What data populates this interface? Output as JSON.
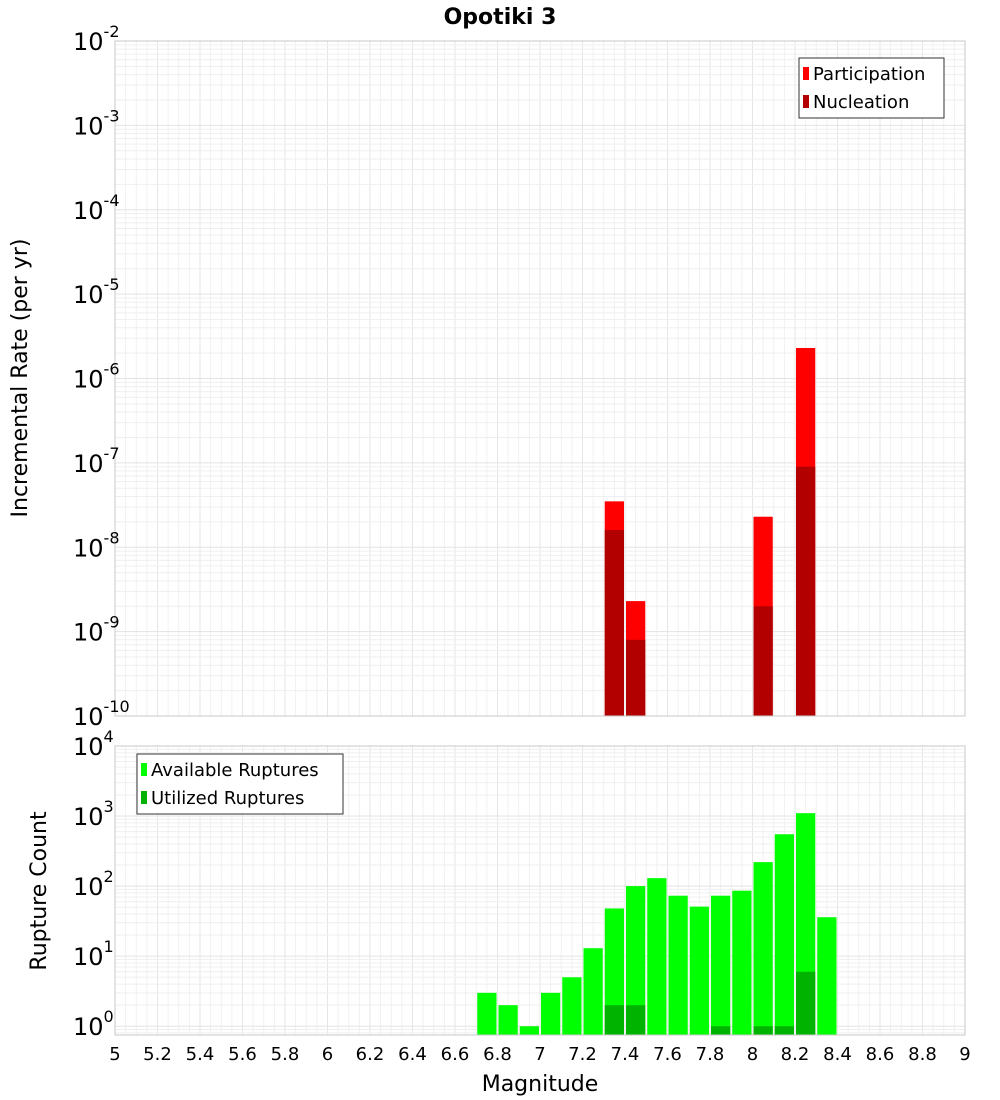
{
  "chart_data": [
    {
      "type": "bar",
      "title": "Opotiki 3",
      "xlabel": "",
      "ylabel": "Incremental Rate (per yr)",
      "yscale": "log",
      "xlim": [
        5,
        9
      ],
      "ylim": [
        1e-10,
        0.01
      ],
      "y_tick_exponents": [
        -10,
        -9,
        -8,
        -7,
        -6,
        -5,
        -4,
        -3,
        -2
      ],
      "y_tick_base": "10",
      "grid": true,
      "legend_position": "top-right",
      "series": [
        {
          "name": "Participation",
          "color": "#ff0000",
          "points": [
            {
              "x": 7.35,
              "y": 3.5e-08
            },
            {
              "x": 7.45,
              "y": 2.3e-09
            },
            {
              "x": 8.05,
              "y": 2.3e-08
            },
            {
              "x": 8.25,
              "y": 2.3e-06
            }
          ]
        },
        {
          "name": "Nucleation",
          "color": "#b20000",
          "points": [
            {
              "x": 7.35,
              "y": 1.6e-08
            },
            {
              "x": 7.45,
              "y": 8e-10
            },
            {
              "x": 8.05,
              "y": 2e-09
            },
            {
              "x": 8.25,
              "y": 9e-08
            }
          ]
        }
      ]
    },
    {
      "type": "bar",
      "title": "",
      "xlabel": "Magnitude",
      "ylabel": "Rupture Count",
      "yscale": "log",
      "xlim": [
        5,
        9
      ],
      "ylim": [
        0.75,
        10000
      ],
      "y_tick_exponents": [
        0,
        1,
        2,
        3,
        4
      ],
      "y_tick_base": "10",
      "x_ticks": [
        "5",
        "5.2",
        "5.4",
        "5.6",
        "5.8",
        "6",
        "6.2",
        "6.4",
        "6.6",
        "6.8",
        "7",
        "7.2",
        "7.4",
        "7.6",
        "7.8",
        "8",
        "8.2",
        "8.4",
        "8.6",
        "8.8",
        "9"
      ],
      "grid": true,
      "legend_position": "top-left",
      "series": [
        {
          "name": "Available Ruptures",
          "color": "#00ff00",
          "points": [
            {
              "x": 6.75,
              "y": 3
            },
            {
              "x": 6.85,
              "y": 2
            },
            {
              "x": 6.95,
              "y": 1
            },
            {
              "x": 7.05,
              "y": 3
            },
            {
              "x": 7.15,
              "y": 5
            },
            {
              "x": 7.25,
              "y": 13
            },
            {
              "x": 7.35,
              "y": 48
            },
            {
              "x": 7.45,
              "y": 100
            },
            {
              "x": 7.55,
              "y": 130
            },
            {
              "x": 7.65,
              "y": 73
            },
            {
              "x": 7.75,
              "y": 51
            },
            {
              "x": 7.85,
              "y": 73
            },
            {
              "x": 7.95,
              "y": 86
            },
            {
              "x": 8.05,
              "y": 220
            },
            {
              "x": 8.15,
              "y": 550
            },
            {
              "x": 8.25,
              "y": 1100
            },
            {
              "x": 8.35,
              "y": 36
            }
          ]
        },
        {
          "name": "Utilized Ruptures",
          "color": "#00b300",
          "points": [
            {
              "x": 7.35,
              "y": 2
            },
            {
              "x": 7.45,
              "y": 2
            },
            {
              "x": 7.85,
              "y": 1
            },
            {
              "x": 8.05,
              "y": 1
            },
            {
              "x": 8.15,
              "y": 1
            },
            {
              "x": 8.25,
              "y": 6
            }
          ]
        }
      ]
    }
  ]
}
